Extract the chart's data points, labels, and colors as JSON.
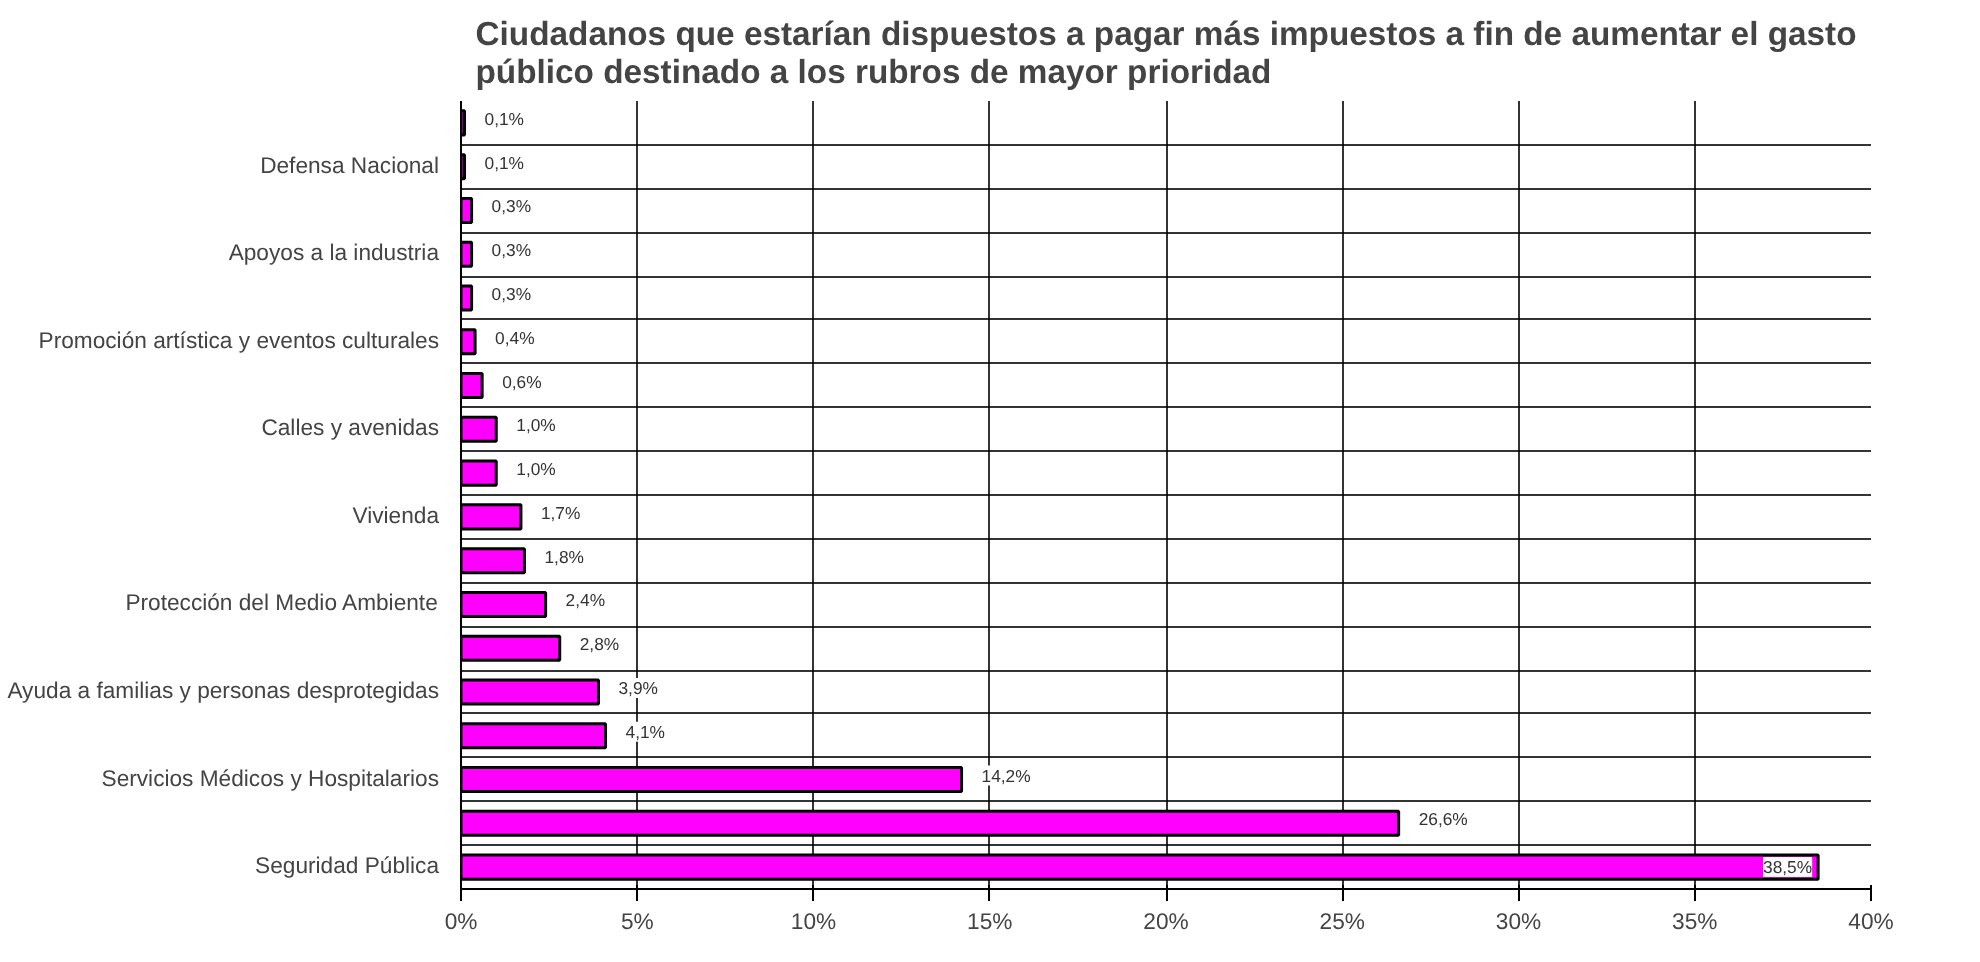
{
  "chart_data": {
    "type": "bar",
    "orientation": "horizontal",
    "title": "Ciudadanos que estarían dispuestos a pagar más impuestos a fin de aumentar el gasto\npúblico destinado a los rubros de mayor prioridad",
    "categories": [
      null,
      "Defensa Nacional",
      null,
      "Apoyos a la industria",
      null,
      "Promoción artística y eventos culturales",
      null,
      "Calles y avenidas",
      null,
      "Vivienda",
      null,
      "Protección del Medio Ambiente",
      null,
      "Ayuda a familias y personas desprotegidas",
      null,
      "Servicios Médicos y Hospitalarios",
      null,
      "Seguridad Pública"
    ],
    "values": [
      0.1,
      0.1,
      0.3,
      0.3,
      0.3,
      0.4,
      0.6,
      1.0,
      1.0,
      1.7,
      1.8,
      2.4,
      2.8,
      3.9,
      4.1,
      14.2,
      26.6,
      38.5
    ],
    "value_labels": [
      "0,1%",
      "0,1%",
      "0,3%",
      "0,3%",
      "0,3%",
      "0,4%",
      "0,6%",
      "1,0%",
      "1,0%",
      "1,7%",
      "1,8%",
      "2,4%",
      "2,8%",
      "3,9%",
      "4,1%",
      "14,2%",
      "26,6%",
      "38,5%"
    ],
    "color": "#ff00ff",
    "xlim": [
      0,
      40
    ],
    "xticks": [
      {
        "value": 0,
        "label": "0%"
      },
      {
        "value": 5,
        "label": "5%"
      },
      {
        "value": 10,
        "label": "10%"
      },
      {
        "value": 15,
        "label": "15%"
      },
      {
        "value": 20,
        "label": "20%"
      },
      {
        "value": 25,
        "label": "25%"
      },
      {
        "value": 30,
        "label": "30%"
      },
      {
        "value": 35,
        "label": "35%"
      },
      {
        "value": 40,
        "label": "40%"
      }
    ],
    "grid": true
  }
}
